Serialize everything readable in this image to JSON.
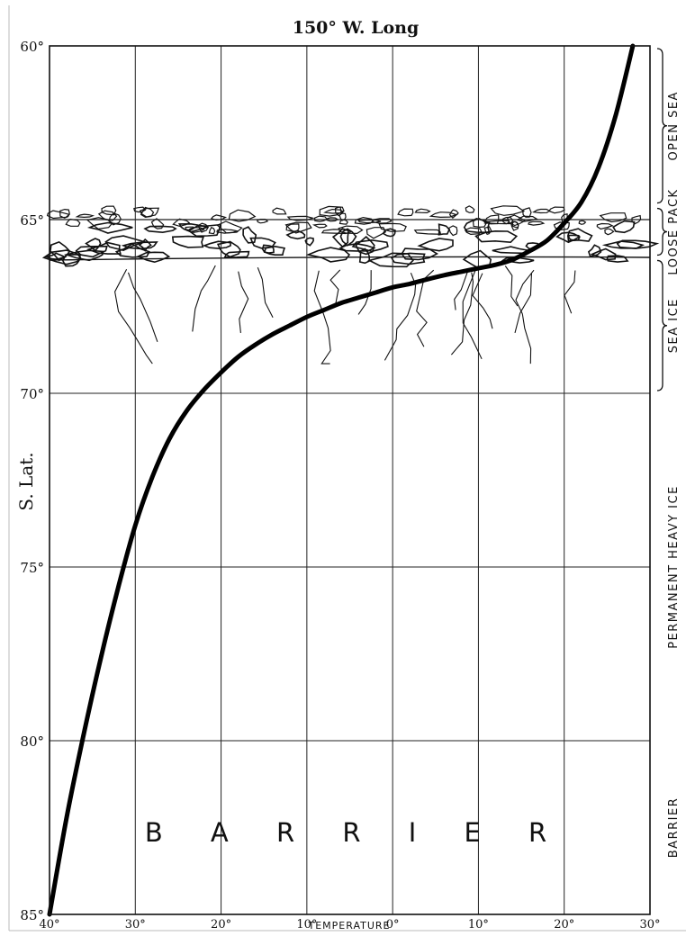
{
  "chart_data": {
    "type": "line",
    "title": "150° W. Long",
    "ylabel": "S. Lat.",
    "xlabel": "TEMPERATURE",
    "x_tick_labels": [
      "40°",
      "30°",
      "20°",
      "10°",
      "0°",
      "10°",
      "20°",
      "30°"
    ],
    "x_tick_values": [
      -40,
      -30,
      -20,
      -10,
      0,
      10,
      20,
      30
    ],
    "y_tick_labels": [
      "60°",
      "65°",
      "70°",
      "75°",
      "80°",
      "85°"
    ],
    "y_tick_values": [
      60,
      65,
      70,
      75,
      80,
      85
    ],
    "xlim": [
      -40,
      30
    ],
    "ylim": [
      85,
      60
    ],
    "grid": true,
    "series": [
      {
        "x": [
          -40,
          -38,
          -36,
          -34,
          -32,
          -30,
          -28,
          -26,
          -24,
          -22,
          -20,
          -18,
          -16,
          -14,
          -12,
          -10,
          -8,
          -6,
          -4,
          -2,
          0,
          2,
          4,
          6,
          8,
          10,
          12,
          14,
          16,
          18,
          20,
          22,
          24,
          26,
          28
        ],
        "y": [
          85,
          82.2,
          79.8,
          77.6,
          75.6,
          73.8,
          72.4,
          71.3,
          70.5,
          69.9,
          69.4,
          68.95,
          68.6,
          68.3,
          68.05,
          67.8,
          67.6,
          67.4,
          67.25,
          67.1,
          66.95,
          66.85,
          66.72,
          66.6,
          66.5,
          66.4,
          66.3,
          66.15,
          65.9,
          65.6,
          65.1,
          64.5,
          63.5,
          62.0,
          60.0
        ]
      }
    ],
    "regions": [
      {
        "label": "OPEN SEA",
        "from": 60,
        "to": 64.6
      },
      {
        "label": "LOOSE PACK",
        "from": 64.6,
        "to": 66.1
      },
      {
        "label": "SEA ICE",
        "from": 66.1,
        "to": 70
      },
      {
        "label": "PERMANENT HEAVY ICE",
        "from": 70,
        "to": 80
      },
      {
        "label": "BARRIER",
        "from": 80,
        "to": 85
      }
    ],
    "area_label": "B A R R I E R",
    "ice_field": {
      "top": 64.6,
      "boundary": 65.0,
      "bottom": 68.5
    }
  }
}
